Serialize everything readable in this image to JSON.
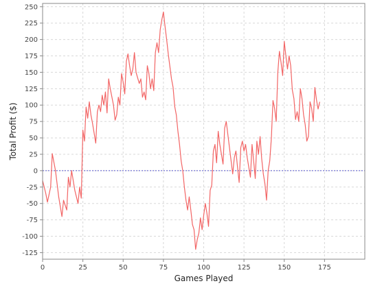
{
  "chart_data": {
    "type": "line",
    "title": "",
    "xlabel": "Games Played",
    "ylabel": "Total Profit ($)",
    "xlim": [
      0,
      200
    ],
    "ylim": [
      -135,
      255
    ],
    "grid": true,
    "x_ticks": [
      0,
      25,
      50,
      75,
      100,
      125,
      150,
      175
    ],
    "y_ticks": [
      -125,
      -100,
      -75,
      -50,
      -25,
      0,
      25,
      50,
      75,
      100,
      125,
      150,
      175,
      200,
      225,
      250
    ],
    "reference_line": {
      "y": 0,
      "color": "#5555cc",
      "style": "dashed"
    },
    "series": [
      {
        "color": "#f26464",
        "points": [
          [
            0,
            -15
          ],
          [
            2,
            -35
          ],
          [
            3,
            -48
          ],
          [
            5,
            -25
          ],
          [
            6,
            26
          ],
          [
            8,
            0
          ],
          [
            10,
            -40
          ],
          [
            12,
            -70
          ],
          [
            13,
            -45
          ],
          [
            15,
            -60
          ],
          [
            16,
            -10
          ],
          [
            17,
            -25
          ],
          [
            18,
            0
          ],
          [
            20,
            -30
          ],
          [
            22,
            -50
          ],
          [
            23,
            -25
          ],
          [
            24,
            -42
          ],
          [
            25,
            62
          ],
          [
            26,
            45
          ],
          [
            27,
            97
          ],
          [
            28,
            80
          ],
          [
            29,
            105
          ],
          [
            30,
            85
          ],
          [
            31,
            72
          ],
          [
            33,
            42
          ],
          [
            34,
            90
          ],
          [
            35,
            100
          ],
          [
            36,
            90
          ],
          [
            37,
            115
          ],
          [
            38,
            100
          ],
          [
            39,
            120
          ],
          [
            40,
            88
          ],
          [
            41,
            140
          ],
          [
            42,
            125
          ],
          [
            44,
            100
          ],
          [
            45,
            77
          ],
          [
            46,
            85
          ],
          [
            47,
            112
          ],
          [
            48,
            100
          ],
          [
            49,
            148
          ],
          [
            50,
            135
          ],
          [
            51,
            117
          ],
          [
            52,
            167
          ],
          [
            53,
            178
          ],
          [
            54,
            160
          ],
          [
            55,
            145
          ],
          [
            56,
            155
          ],
          [
            57,
            180
          ],
          [
            58,
            150
          ],
          [
            60,
            133
          ],
          [
            61,
            140
          ],
          [
            62,
            112
          ],
          [
            63,
            120
          ],
          [
            64,
            108
          ],
          [
            65,
            160
          ],
          [
            66,
            148
          ],
          [
            67,
            125
          ],
          [
            68,
            140
          ],
          [
            69,
            122
          ],
          [
            70,
            180
          ],
          [
            71,
            195
          ],
          [
            72,
            180
          ],
          [
            73,
            215
          ],
          [
            74,
            230
          ],
          [
            75,
            242
          ],
          [
            76,
            220
          ],
          [
            77,
            200
          ],
          [
            78,
            178
          ],
          [
            80,
            140
          ],
          [
            81,
            127
          ],
          [
            82,
            98
          ],
          [
            83,
            85
          ],
          [
            84,
            60
          ],
          [
            85,
            40
          ],
          [
            86,
            15
          ],
          [
            87,
            0
          ],
          [
            88,
            -25
          ],
          [
            89,
            -45
          ],
          [
            90,
            -60
          ],
          [
            91,
            -40
          ],
          [
            92,
            -60
          ],
          [
            93,
            -82
          ],
          [
            94,
            -90
          ],
          [
            95,
            -120
          ],
          [
            96,
            -105
          ],
          [
            97,
            -95
          ],
          [
            98,
            -72
          ],
          [
            99,
            -90
          ],
          [
            100,
            -68
          ],
          [
            101,
            -50
          ],
          [
            102,
            -65
          ],
          [
            103,
            -85
          ],
          [
            104,
            -30
          ],
          [
            105,
            -22
          ],
          [
            106,
            30
          ],
          [
            107,
            40
          ],
          [
            108,
            12
          ],
          [
            109,
            60
          ],
          [
            110,
            40
          ],
          [
            112,
            10
          ],
          [
            113,
            65
          ],
          [
            114,
            75
          ],
          [
            115,
            55
          ],
          [
            116,
            35
          ],
          [
            117,
            15
          ],
          [
            118,
            -5
          ],
          [
            119,
            20
          ],
          [
            120,
            30
          ],
          [
            121,
            5
          ],
          [
            122,
            -18
          ],
          [
            123,
            35
          ],
          [
            124,
            45
          ],
          [
            125,
            30
          ],
          [
            126,
            40
          ],
          [
            127,
            20
          ],
          [
            128,
            5
          ],
          [
            129,
            -10
          ],
          [
            130,
            40
          ],
          [
            131,
            15
          ],
          [
            132,
            -12
          ],
          [
            133,
            45
          ],
          [
            134,
            25
          ],
          [
            135,
            52
          ],
          [
            136,
            18
          ],
          [
            137,
            -5
          ],
          [
            138,
            -20
          ],
          [
            139,
            -45
          ],
          [
            140,
            0
          ],
          [
            141,
            15
          ],
          [
            142,
            50
          ],
          [
            143,
            107
          ],
          [
            144,
            95
          ],
          [
            145,
            75
          ],
          [
            146,
            150
          ],
          [
            147,
            182
          ],
          [
            148,
            165
          ],
          [
            149,
            145
          ],
          [
            150,
            197
          ],
          [
            151,
            175
          ],
          [
            152,
            155
          ],
          [
            153,
            175
          ],
          [
            154,
            160
          ],
          [
            155,
            123
          ],
          [
            156,
            110
          ],
          [
            157,
            78
          ],
          [
            158,
            90
          ],
          [
            159,
            75
          ],
          [
            160,
            125
          ],
          [
            161,
            110
          ],
          [
            162,
            85
          ],
          [
            163,
            70
          ],
          [
            164,
            45
          ],
          [
            165,
            52
          ],
          [
            166,
            105
          ],
          [
            167,
            95
          ],
          [
            168,
            75
          ],
          [
            169,
            127
          ],
          [
            170,
            108
          ],
          [
            171,
            94
          ],
          [
            172,
            105
          ]
        ]
      }
    ]
  }
}
